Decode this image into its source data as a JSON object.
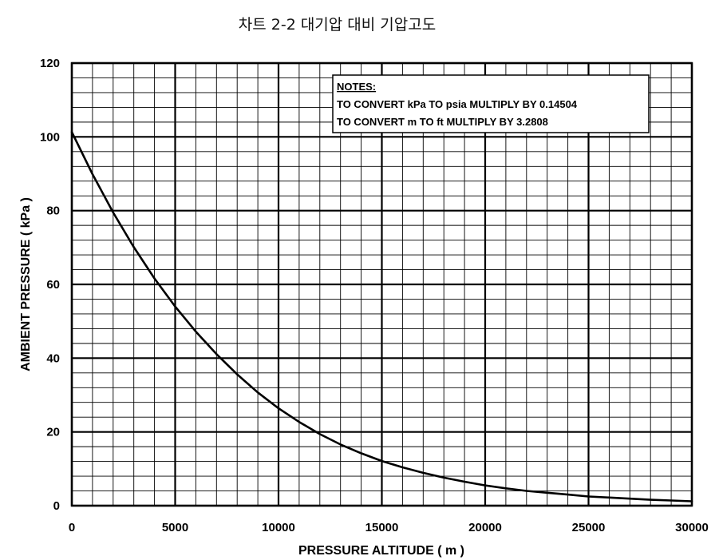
{
  "chart_data": {
    "type": "line",
    "title": "차트 2-2 대기압 대비 기압고도",
    "xlabel": "PRESSURE ALTITUDE ( m )",
    "ylabel": "AMBIENT PRESSURE ( kPa )",
    "xlim": [
      0,
      30000
    ],
    "ylim": [
      0,
      120
    ],
    "x_ticks": [
      0,
      5000,
      10000,
      15000,
      20000,
      25000,
      30000
    ],
    "y_ticks": [
      0,
      20,
      40,
      60,
      80,
      100,
      120
    ],
    "grid": true,
    "notes": {
      "heading": "NOTES:",
      "lines": [
        "TO CONVERT kPa TO psia MULTIPLY BY 0.14504",
        "TO CONVERT m TO ft MULTIPLY BY 3.2808"
      ]
    },
    "series": [
      {
        "x": [
          0,
          1000,
          2000,
          3000,
          4000,
          5000,
          6000,
          7000,
          8000,
          9000,
          10000,
          11000,
          12000,
          13000,
          14000,
          15000,
          16000,
          17000,
          18000,
          19000,
          20000,
          21000,
          22000,
          23000,
          24000,
          25000,
          26000,
          27000,
          28000,
          29000,
          30000
        ],
        "y": [
          101.3,
          89.9,
          79.5,
          70.1,
          61.6,
          54.0,
          47.2,
          41.1,
          35.6,
          30.7,
          26.4,
          22.7,
          19.4,
          16.6,
          14.2,
          12.1,
          10.4,
          8.9,
          7.6,
          6.5,
          5.5,
          4.7,
          4.0,
          3.5,
          3.0,
          2.5,
          2.2,
          1.9,
          1.6,
          1.4,
          1.2
        ]
      }
    ]
  }
}
